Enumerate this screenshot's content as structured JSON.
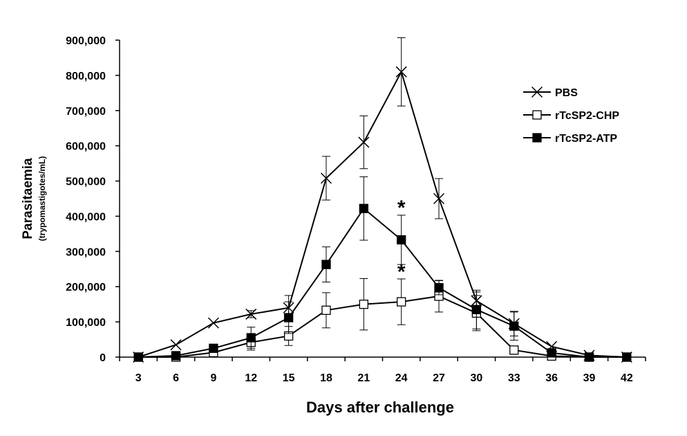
{
  "chart_data": {
    "type": "line",
    "title": "",
    "xlabel": "Days after challenge",
    "ylabel": "Parasitaemia",
    "ylabel_sub": "(trypomastigotes/mL)",
    "x": [
      3,
      6,
      9,
      12,
      15,
      18,
      21,
      24,
      27,
      30,
      33,
      36,
      39,
      42
    ],
    "x_tick_labels": [
      "3",
      "6",
      "9",
      "12",
      "15",
      "18",
      "21",
      "24",
      "27",
      "30",
      "33",
      "36",
      "39",
      "42"
    ],
    "ylim": [
      0,
      900000
    ],
    "y_tick_labels": [
      "0",
      "100,000",
      "200,000",
      "300,000",
      "400,000",
      "500,000",
      "600,000",
      "700,000",
      "800,000",
      "900,000"
    ],
    "y_ticks": [
      0,
      100000,
      200000,
      300000,
      400000,
      500000,
      600000,
      700000,
      800000,
      900000
    ],
    "grid": false,
    "legend_position": "right",
    "series": [
      {
        "name": "PBS",
        "marker": "x",
        "values": [
          0,
          35000,
          97000,
          122000,
          140000,
          508000,
          610000,
          810000,
          450000,
          160000,
          95000,
          30000,
          5000,
          0
        ],
        "errors": [
          0,
          0,
          0,
          10000,
          35000,
          62000,
          75000,
          97000,
          57000,
          25000,
          35000,
          0,
          0,
          0
        ]
      },
      {
        "name": "rTcSP2-CHP",
        "marker": "open-square",
        "values": [
          0,
          0,
          13000,
          42000,
          60000,
          133000,
          150000,
          157000,
          173000,
          125000,
          20000,
          3000,
          0,
          0
        ],
        "errors": [
          0,
          0,
          5000,
          22000,
          27000,
          50000,
          73000,
          65000,
          45000,
          50000,
          0,
          0,
          0,
          0
        ]
      },
      {
        "name": "rTcSP2-ATP",
        "marker": "filled-square",
        "values": [
          0,
          4000,
          25000,
          55000,
          112000,
          263000,
          422000,
          333000,
          197000,
          135000,
          88000,
          12000,
          0,
          0
        ],
        "errors": [
          0,
          0,
          0,
          30000,
          45000,
          50000,
          90000,
          70000,
          20000,
          55000,
          40000,
          0,
          0,
          0
        ]
      }
    ],
    "annotations": [
      {
        "text": "*",
        "x": 24,
        "y": 405000
      },
      {
        "text": "*",
        "x": 24,
        "y": 223000
      }
    ]
  }
}
